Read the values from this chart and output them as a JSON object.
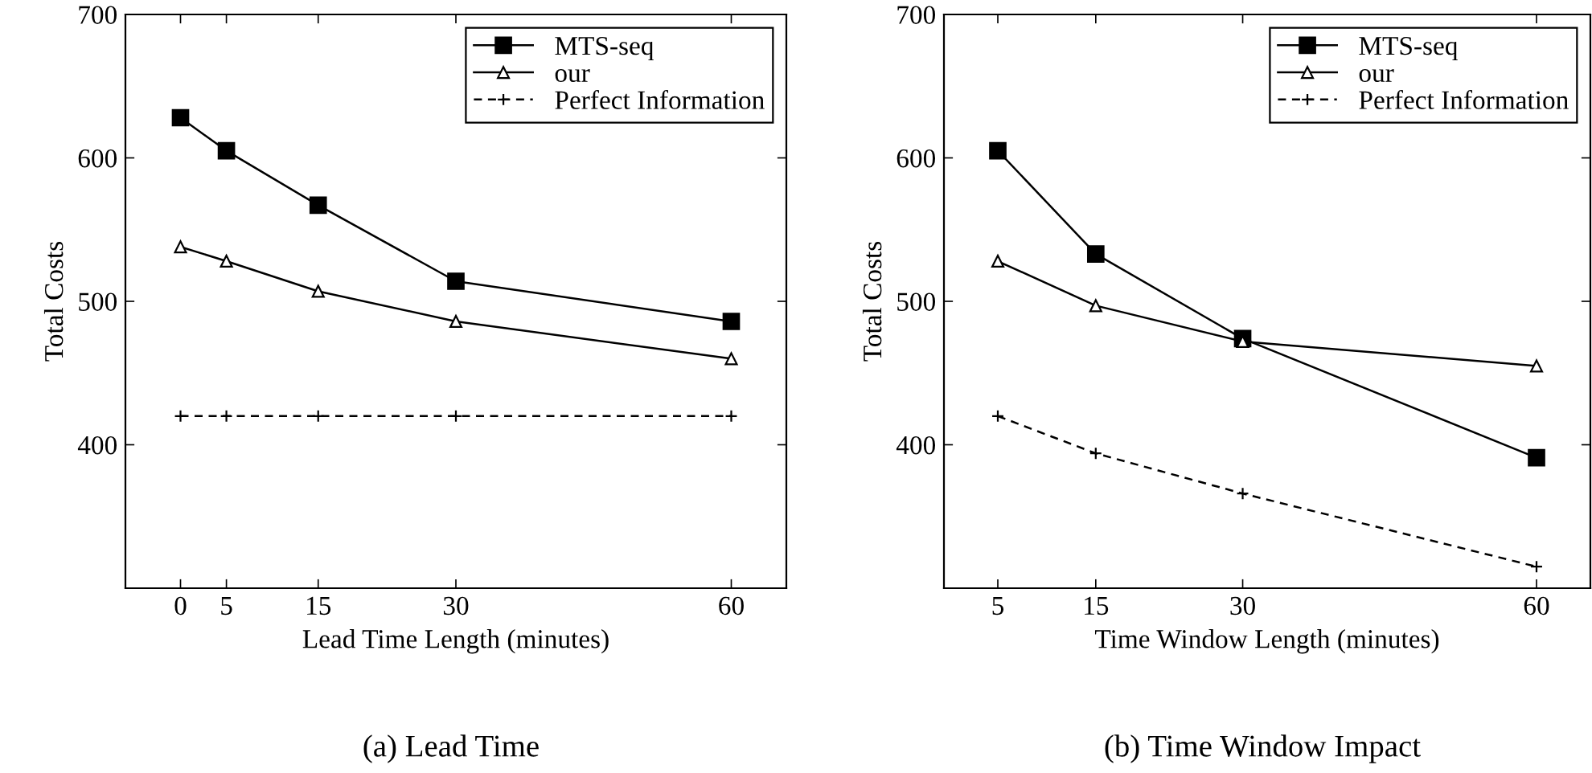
{
  "chart_data": [
    {
      "type": "line",
      "xlabel": "Lead Time Length (minutes)",
      "ylabel": "Total Costs",
      "x": [
        0,
        5,
        15,
        30,
        60
      ],
      "xlim": [
        -6,
        66
      ],
      "xticks": [
        0,
        5,
        15,
        30,
        60
      ],
      "ylim": [
        300,
        700
      ],
      "yticks": [
        400,
        500,
        600,
        700
      ],
      "grid": false,
      "legend": "top right",
      "annotations": [
        "(a) Lead Time"
      ],
      "series": [
        {
          "name": "MTS-seq",
          "color": "#000000",
          "marker": "square",
          "line_style": "solid",
          "values": [
            628,
            605,
            567,
            514,
            486
          ]
        },
        {
          "name": "our",
          "color": "#000000",
          "marker": "triangle",
          "line_style": "solid",
          "values": [
            538,
            528,
            507,
            486,
            460
          ]
        },
        {
          "name": "Perfect Information",
          "color": "#000000",
          "marker": "cross",
          "line_style": "dashed",
          "values": [
            420,
            420,
            420,
            420,
            420
          ]
        }
      ]
    },
    {
      "type": "line",
      "xlabel": "Time Window Length (minutes)",
      "ylabel": "Total Costs",
      "x": [
        5,
        15,
        30,
        60
      ],
      "xlim": [
        -0.5,
        65.5
      ],
      "xticks": [
        5,
        15,
        30,
        60
      ],
      "ylim": [
        300,
        700
      ],
      "yticks": [
        400,
        500,
        600,
        700
      ],
      "grid": false,
      "legend": "top right",
      "annotations": [
        "(b) Time Window Impact"
      ],
      "series": [
        {
          "name": "MTS-seq",
          "color": "#000000",
          "marker": "square",
          "line_style": "solid",
          "values": [
            605,
            533,
            474,
            391
          ]
        },
        {
          "name": "our",
          "color": "#000000",
          "marker": "triangle",
          "line_style": "solid",
          "values": [
            528,
            497,
            472,
            455
          ]
        },
        {
          "name": "Perfect Information",
          "color": "#000000",
          "marker": "cross",
          "line_style": "dashed",
          "values": [
            420,
            394,
            366,
            315
          ]
        }
      ]
    }
  ]
}
